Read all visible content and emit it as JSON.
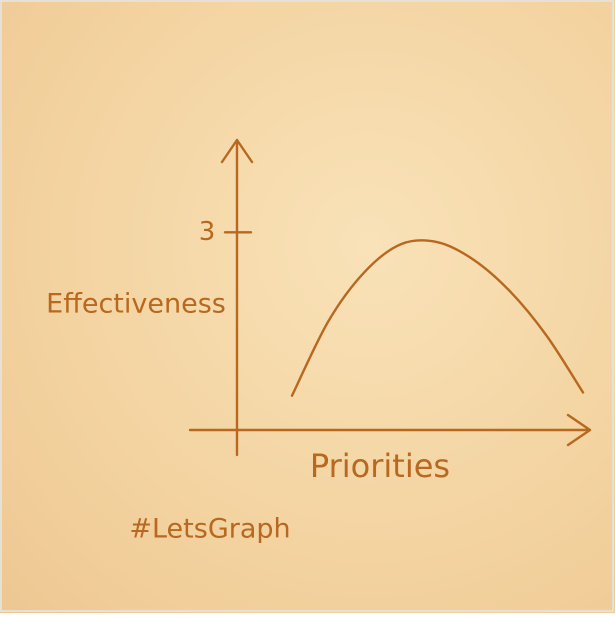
{
  "chart_data": {
    "type": "line",
    "ylabel": "Effectiveness",
    "xlabel": "Priorities",
    "annotation": "#LetsGraph",
    "categories": [
      null,
      null,
      null,
      null,
      null,
      null,
      null,
      null,
      null
    ],
    "series": [
      {
        "color": "#b8681f",
        "values": [
          0.52,
          1.65,
          2.4,
          2.82,
          2.85,
          2.58,
          2.1,
          1.43,
          0.57
        ]
      }
    ],
    "ylim": [
      0,
      4.4
    ],
    "yticks": [
      3
    ]
  }
}
